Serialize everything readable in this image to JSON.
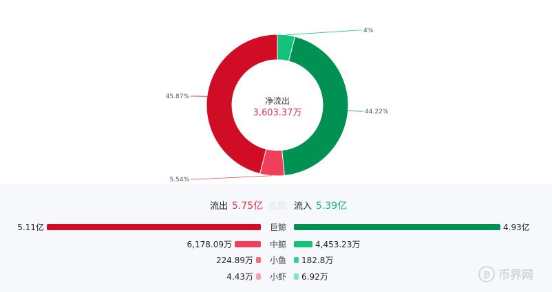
{
  "donut": {
    "center_title": "净流出",
    "center_value": "3,603.37万",
    "segments": [
      {
        "name": "flow-in-small",
        "percent": 4,
        "label": "4%",
        "color": "#14c27a"
      },
      {
        "name": "flow-in-large",
        "percent": 44.22,
        "label": "44.22%",
        "color": "#009153"
      },
      {
        "name": "flow-out-small",
        "percent": 5.54,
        "label": "5.54%",
        "color": "#ef3f5a"
      },
      {
        "name": "flow-out-large",
        "percent": 45.87,
        "label": "45.87%",
        "color": "#d10c25"
      }
    ]
  },
  "summary": {
    "out_label": "流出",
    "out_value": "5.75亿",
    "mid_label": "差额",
    "in_label": "流入",
    "in_value": "5.39亿"
  },
  "rows": [
    {
      "category": "巨鲸",
      "out_value": "5.11亿",
      "in_value": "4.93亿",
      "out_fraction": 1.0,
      "in_fraction": 0.965,
      "out_color": "#d10c25",
      "in_color": "#009153"
    },
    {
      "category": "中鲸",
      "out_value": "6,178.09万",
      "in_value": "4,453.23万",
      "out_fraction": 0.121,
      "in_fraction": 0.087,
      "out_color": "#ef3f5a",
      "in_color": "#14c27a"
    },
    {
      "category": "小鱼",
      "out_value": "224.89万",
      "in_value": "182.8万",
      "out_fraction": 0.0044,
      "in_fraction": 0.0036,
      "out_color": "#f26f82",
      "in_color": "#33d38d"
    },
    {
      "category": "小虾",
      "out_value": "4.43万",
      "in_value": "6.92万",
      "out_fraction": 0.0001,
      "in_fraction": 0.0001,
      "out_color": "#f5a2ae",
      "in_color": "#7ee6b8"
    }
  ],
  "colors": {
    "out": "#e8324b",
    "in": "#10b874"
  },
  "watermark": {
    "text": "币界网"
  }
}
